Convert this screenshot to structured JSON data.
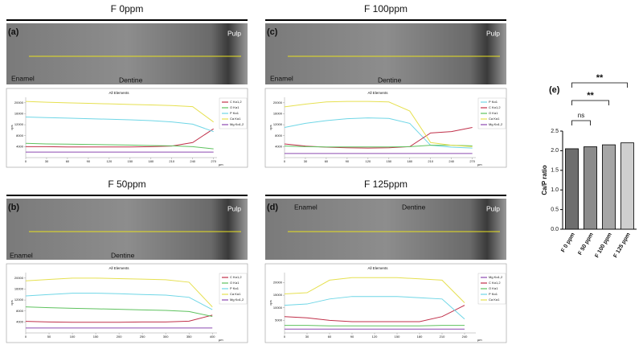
{
  "chart_data": [
    {
      "type": "line",
      "panel_label": "(a)",
      "title": "F 0ppm",
      "image_labels": [
        "Pulp",
        "Enamel",
        "Dentine"
      ],
      "subtitle": "All Elements",
      "y_label": "cps",
      "x_label": "µm",
      "xlim": [
        0,
        275
      ],
      "xticks": [
        0,
        30,
        60,
        90,
        120,
        150,
        180,
        210,
        240,
        270
      ],
      "ylim": [
        0,
        22000
      ],
      "yticks": [
        4000,
        8000,
        12000,
        16000,
        20000
      ],
      "x": [
        0,
        30,
        60,
        90,
        120,
        150,
        180,
        210,
        240,
        270
      ],
      "series": [
        {
          "name": "C Kα1,2",
          "color": "#c0304a",
          "values": [
            4000,
            4000,
            3900,
            3900,
            3900,
            3900,
            4000,
            4200,
            5500,
            10500
          ]
        },
        {
          "name": "O Kα1",
          "color": "#5ec25e",
          "values": [
            5200,
            5000,
            4900,
            4800,
            4700,
            4600,
            4400,
            4300,
            4000,
            3200
          ]
        },
        {
          "name": "P Kα1",
          "color": "#6fd6e6",
          "values": [
            14800,
            14600,
            14400,
            14200,
            14000,
            13800,
            13500,
            13000,
            12200,
            9500
          ]
        },
        {
          "name": "Ca Kα1",
          "color": "#e6e050",
          "values": [
            20500,
            20200,
            20000,
            19800,
            19600,
            19400,
            19200,
            19000,
            18600,
            13000
          ]
        },
        {
          "name": "Mg Kα1,2",
          "color": "#8c4ab0",
          "values": [
            2000,
            2000,
            2000,
            2000,
            2000,
            2000,
            2000,
            2000,
            2000,
            2000
          ]
        }
      ]
    },
    {
      "type": "line",
      "panel_label": "(c)",
      "title": "F 100ppm",
      "image_labels": [
        "Pulp",
        "Enamel",
        "Dentine"
      ],
      "subtitle": "All Elements",
      "y_label": "cps",
      "x_label": "µm",
      "xlim": [
        0,
        275
      ],
      "xticks": [
        0,
        30,
        60,
        90,
        120,
        150,
        180,
        210,
        240,
        270
      ],
      "ylim": [
        0,
        22000
      ],
      "yticks": [
        4000,
        8000,
        12000,
        16000,
        20000
      ],
      "x": [
        0,
        30,
        60,
        90,
        120,
        150,
        180,
        210,
        240,
        270
      ],
      "series": [
        {
          "name": "P Kα1",
          "color": "#6fd6e6",
          "values": [
            11000,
            12500,
            13500,
            14200,
            14500,
            14300,
            12500,
            4500,
            3800,
            3500
          ]
        },
        {
          "name": "C Kα1,2",
          "color": "#c0304a",
          "values": [
            5000,
            4200,
            3800,
            3600,
            3500,
            3600,
            4000,
            9000,
            9500,
            11000
          ]
        },
        {
          "name": "O Kα1",
          "color": "#5ec25e",
          "values": [
            4200,
            4000,
            3900,
            3900,
            3900,
            3900,
            4000,
            4500,
            4500,
            4300
          ]
        },
        {
          "name": "Ca Kα1",
          "color": "#e6e050",
          "values": [
            18500,
            19500,
            20300,
            20500,
            20500,
            20300,
            17000,
            5500,
            4500,
            4000
          ]
        },
        {
          "name": "Mg Kα1,2",
          "color": "#8c4ab0",
          "values": [
            1500,
            1500,
            1500,
            1500,
            1500,
            1500,
            1500,
            1500,
            1500,
            1500
          ]
        }
      ]
    },
    {
      "type": "line",
      "panel_label": "(b)",
      "title": "F 50ppm",
      "image_labels": [
        "Pulp",
        "Enamel",
        "Dentine"
      ],
      "subtitle": "All Elements",
      "y_label": "cps",
      "x_label": "µm",
      "xlim": [
        0,
        410
      ],
      "xticks": [
        0,
        50,
        100,
        150,
        200,
        250,
        300,
        350,
        400
      ],
      "ylim": [
        0,
        22000
      ],
      "yticks": [
        4000,
        8000,
        12000,
        16000,
        20000
      ],
      "x": [
        0,
        50,
        100,
        150,
        200,
        250,
        300,
        350,
        400
      ],
      "series": [
        {
          "name": "C Kα1,2",
          "color": "#c0304a",
          "values": [
            4200,
            4000,
            3900,
            3900,
            3900,
            4000,
            4000,
            4300,
            6500
          ]
        },
        {
          "name": "O Kα1",
          "color": "#5ec25e",
          "values": [
            9500,
            9200,
            9000,
            8800,
            8600,
            8400,
            8200,
            7800,
            6000
          ]
        },
        {
          "name": "P Kα1",
          "color": "#6fd6e6",
          "values": [
            13500,
            14000,
            14500,
            14500,
            14300,
            14000,
            13800,
            13000,
            8500
          ]
        },
        {
          "name": "Ca Kα1",
          "color": "#e6e050",
          "values": [
            19000,
            19500,
            20000,
            20000,
            19800,
            19600,
            19400,
            18500,
            9500
          ]
        },
        {
          "name": "Mg Kα1,2",
          "color": "#8c4ab0",
          "values": [
            1800,
            1800,
            1800,
            1800,
            1800,
            1800,
            1800,
            1800,
            1800
          ]
        }
      ]
    },
    {
      "type": "line",
      "panel_label": "(d)",
      "title": "F 125ppm",
      "image_labels": [
        "Pulp",
        "Enamel",
        "Dentine"
      ],
      "subtitle": "All Elements",
      "y_label": "cps",
      "x_label": "µm",
      "xlim": [
        0,
        255
      ],
      "xticks": [
        0,
        30,
        60,
        90,
        120,
        150,
        180,
        210,
        240
      ],
      "ylim": [
        0,
        24000
      ],
      "yticks": [
        5000,
        10000,
        15000,
        20000
      ],
      "x": [
        0,
        30,
        60,
        90,
        120,
        150,
        180,
        210,
        240
      ],
      "series": [
        {
          "name": "Mg Kα1,2",
          "color": "#8c4ab0",
          "values": [
            1500,
            1500,
            1500,
            1500,
            1500,
            1500,
            1500,
            1500,
            1500
          ]
        },
        {
          "name": "C Kα1,2",
          "color": "#c0304a",
          "values": [
            6500,
            6000,
            5000,
            4500,
            4500,
            4500,
            4500,
            6500,
            11000
          ]
        },
        {
          "name": "O Kα1",
          "color": "#5ec25e",
          "values": [
            3000,
            3000,
            2800,
            2800,
            2800,
            2800,
            2800,
            3000,
            3000
          ]
        },
        {
          "name": "P Kα1",
          "color": "#6fd6e6",
          "values": [
            11000,
            11500,
            13500,
            14500,
            14500,
            14500,
            14000,
            13500,
            5500
          ]
        },
        {
          "name": "Ca Kα1",
          "color": "#e6e050",
          "values": [
            15500,
            16000,
            21000,
            22000,
            22000,
            22000,
            21500,
            21000,
            12000
          ]
        }
      ]
    },
    {
      "type": "bar",
      "panel_label": "(e)",
      "y_label": "Ca/P ratio",
      "categories": [
        "F 0 ppm",
        "F 50 ppm",
        "F 100 ppm",
        "F 125 ppm"
      ],
      "values": [
        2.05,
        2.1,
        2.15,
        2.2
      ],
      "colors": [
        "#6e6e6e",
        "#8c8c8c",
        "#a6a6a6",
        "#cfcfcf"
      ],
      "ylim": [
        0,
        2.5
      ],
      "yticks": [
        {
          "value": 0,
          "label": "0.0"
        },
        0.5,
        {
          "value": 1,
          "label": "1.0"
        },
        1.5,
        {
          "value": 2,
          "label": "2.0"
        },
        2.5
      ],
      "annotations": [
        "ns",
        "**",
        "**"
      ]
    }
  ]
}
